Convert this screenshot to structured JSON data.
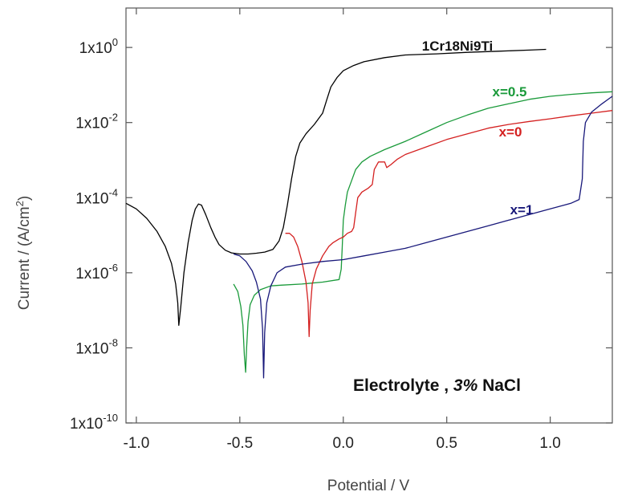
{
  "chart_data": {
    "type": "line",
    "title": "",
    "xlabel": "Potential / V",
    "ylabel": "Current / (A/cm²)",
    "ylabel_parts": [
      "Current / (A/cm",
      "2",
      ")"
    ],
    "xlim": [
      -1.05,
      1.3
    ],
    "ylim_log10": [
      -10,
      1.05
    ],
    "y_scale": "log",
    "x_ticks": [
      {
        "value": -1.0,
        "label": "-1.0"
      },
      {
        "value": -0.5,
        "label": "-0.5"
      },
      {
        "value": 0.0,
        "label": "0.0"
      },
      {
        "value": 0.5,
        "label": "0.5"
      },
      {
        "value": 1.0,
        "label": "1.0"
      }
    ],
    "y_ticks": [
      {
        "exp": 0,
        "mant": "1x10",
        "sup": "0"
      },
      {
        "exp": -2,
        "mant": "1x10",
        "sup": "-2"
      },
      {
        "exp": -4,
        "mant": "1x10",
        "sup": "-4"
      },
      {
        "exp": -6,
        "mant": "1x10",
        "sup": "-6"
      },
      {
        "exp": -8,
        "mant": "1x10",
        "sup": "-8"
      },
      {
        "exp": -10,
        "mant": "1x10",
        "sup": "-10"
      }
    ],
    "annotation": {
      "part1": "Electrolyte ,  ",
      "part2": "3%",
      "part3": " NaCl"
    },
    "grid": false,
    "series": [
      {
        "name": "1Cr18Ni9Ti",
        "color": "#000000",
        "points": [
          [
            -1.05,
            -4.15
          ],
          [
            -1.0,
            -4.3
          ],
          [
            -0.95,
            -4.55
          ],
          [
            -0.9,
            -4.9
          ],
          [
            -0.86,
            -5.3
          ],
          [
            -0.83,
            -5.75
          ],
          [
            -0.81,
            -6.3
          ],
          [
            -0.8,
            -6.8
          ],
          [
            -0.795,
            -7.4
          ],
          [
            -0.785,
            -6.9
          ],
          [
            -0.77,
            -6.0
          ],
          [
            -0.75,
            -5.2
          ],
          [
            -0.73,
            -4.6
          ],
          [
            -0.715,
            -4.3
          ],
          [
            -0.7,
            -4.17
          ],
          [
            -0.685,
            -4.2
          ],
          [
            -0.665,
            -4.45
          ],
          [
            -0.64,
            -4.8
          ],
          [
            -0.62,
            -5.05
          ],
          [
            -0.6,
            -5.25
          ],
          [
            -0.57,
            -5.4
          ],
          [
            -0.54,
            -5.47
          ],
          [
            -0.5,
            -5.5
          ],
          [
            -0.46,
            -5.5
          ],
          [
            -0.42,
            -5.48
          ],
          [
            -0.38,
            -5.45
          ],
          [
            -0.34,
            -5.38
          ],
          [
            -0.31,
            -5.15
          ],
          [
            -0.29,
            -4.8
          ],
          [
            -0.27,
            -4.2
          ],
          [
            -0.25,
            -3.5
          ],
          [
            -0.23,
            -2.9
          ],
          [
            -0.21,
            -2.55
          ],
          [
            -0.18,
            -2.3
          ],
          [
            -0.14,
            -2.05
          ],
          [
            -0.1,
            -1.75
          ],
          [
            -0.08,
            -1.4
          ],
          [
            -0.06,
            -1.05
          ],
          [
            -0.03,
            -0.8
          ],
          [
            0.0,
            -0.62
          ],
          [
            0.05,
            -0.48
          ],
          [
            0.1,
            -0.38
          ],
          [
            0.2,
            -0.27
          ],
          [
            0.3,
            -0.2
          ],
          [
            0.45,
            -0.17
          ],
          [
            0.6,
            -0.13
          ],
          [
            0.75,
            -0.1
          ],
          [
            0.9,
            -0.07
          ],
          [
            0.98,
            -0.05
          ]
        ]
      },
      {
        "name": "x=0.5",
        "color": "#1a9a3a",
        "points": [
          [
            -0.53,
            -6.3
          ],
          [
            -0.51,
            -6.5
          ],
          [
            -0.495,
            -6.9
          ],
          [
            -0.485,
            -7.4
          ],
          [
            -0.478,
            -8.2
          ],
          [
            -0.472,
            -8.65
          ],
          [
            -0.467,
            -8.0
          ],
          [
            -0.46,
            -7.3
          ],
          [
            -0.45,
            -6.85
          ],
          [
            -0.43,
            -6.6
          ],
          [
            -0.4,
            -6.45
          ],
          [
            -0.35,
            -6.35
          ],
          [
            -0.3,
            -6.33
          ],
          [
            -0.2,
            -6.3
          ],
          [
            -0.1,
            -6.25
          ],
          [
            -0.02,
            -6.18
          ],
          [
            -0.01,
            -5.9
          ],
          [
            -0.005,
            -5.3
          ],
          [
            0.0,
            -4.6
          ],
          [
            0.01,
            -4.2
          ],
          [
            0.02,
            -3.85
          ],
          [
            0.04,
            -3.55
          ],
          [
            0.06,
            -3.25
          ],
          [
            0.09,
            -3.05
          ],
          [
            0.13,
            -2.9
          ],
          [
            0.2,
            -2.72
          ],
          [
            0.3,
            -2.5
          ],
          [
            0.4,
            -2.25
          ],
          [
            0.5,
            -2.0
          ],
          [
            0.6,
            -1.8
          ],
          [
            0.7,
            -1.62
          ],
          [
            0.8,
            -1.5
          ],
          [
            0.9,
            -1.38
          ],
          [
            1.0,
            -1.3
          ],
          [
            1.1,
            -1.25
          ],
          [
            1.2,
            -1.21
          ],
          [
            1.3,
            -1.18
          ]
        ]
      },
      {
        "name": "x=0",
        "color": "#d42020",
        "points": [
          [
            -0.28,
            -4.95
          ],
          [
            -0.26,
            -4.95
          ],
          [
            -0.24,
            -5.05
          ],
          [
            -0.22,
            -5.3
          ],
          [
            -0.2,
            -5.7
          ],
          [
            -0.18,
            -6.25
          ],
          [
            -0.17,
            -6.8
          ],
          [
            -0.165,
            -7.7
          ],
          [
            -0.16,
            -7.0
          ],
          [
            -0.15,
            -6.3
          ],
          [
            -0.13,
            -5.9
          ],
          [
            -0.1,
            -5.55
          ],
          [
            -0.07,
            -5.3
          ],
          [
            -0.05,
            -5.2
          ],
          [
            -0.02,
            -5.1
          ],
          [
            0.0,
            -5.05
          ],
          [
            0.02,
            -4.95
          ],
          [
            0.04,
            -4.9
          ],
          [
            0.05,
            -4.8
          ],
          [
            0.06,
            -4.4
          ],
          [
            0.07,
            -4.0
          ],
          [
            0.09,
            -3.85
          ],
          [
            0.12,
            -3.75
          ],
          [
            0.14,
            -3.65
          ],
          [
            0.15,
            -3.25
          ],
          [
            0.17,
            -3.05
          ],
          [
            0.2,
            -3.05
          ],
          [
            0.21,
            -3.2
          ],
          [
            0.23,
            -3.12
          ],
          [
            0.26,
            -2.98
          ],
          [
            0.3,
            -2.85
          ],
          [
            0.4,
            -2.65
          ],
          [
            0.5,
            -2.45
          ],
          [
            0.6,
            -2.3
          ],
          [
            0.7,
            -2.15
          ],
          [
            0.8,
            -2.05
          ],
          [
            0.9,
            -1.97
          ],
          [
            1.0,
            -1.9
          ],
          [
            1.1,
            -1.82
          ],
          [
            1.2,
            -1.75
          ],
          [
            1.3,
            -1.68
          ]
        ]
      },
      {
        "name": "x=1",
        "color": "#18187a",
        "points": [
          [
            -0.53,
            -5.5
          ],
          [
            -0.5,
            -5.55
          ],
          [
            -0.47,
            -5.7
          ],
          [
            -0.44,
            -5.95
          ],
          [
            -0.42,
            -6.25
          ],
          [
            -0.4,
            -6.7
          ],
          [
            -0.39,
            -7.5
          ],
          [
            -0.385,
            -8.8
          ],
          [
            -0.38,
            -7.6
          ],
          [
            -0.37,
            -6.8
          ],
          [
            -0.35,
            -6.35
          ],
          [
            -0.32,
            -6.0
          ],
          [
            -0.28,
            -5.85
          ],
          [
            -0.2,
            -5.77
          ],
          [
            -0.1,
            -5.7
          ],
          [
            0.0,
            -5.65
          ],
          [
            0.1,
            -5.55
          ],
          [
            0.2,
            -5.45
          ],
          [
            0.3,
            -5.35
          ],
          [
            0.4,
            -5.2
          ],
          [
            0.5,
            -5.05
          ],
          [
            0.6,
            -4.9
          ],
          [
            0.7,
            -4.75
          ],
          [
            0.8,
            -4.6
          ],
          [
            0.9,
            -4.45
          ],
          [
            1.0,
            -4.3
          ],
          [
            1.1,
            -4.15
          ],
          [
            1.14,
            -4.05
          ],
          [
            1.155,
            -3.5
          ],
          [
            1.16,
            -2.5
          ],
          [
            1.17,
            -2.0
          ],
          [
            1.2,
            -1.72
          ],
          [
            1.25,
            -1.5
          ],
          [
            1.3,
            -1.3
          ]
        ]
      }
    ]
  }
}
